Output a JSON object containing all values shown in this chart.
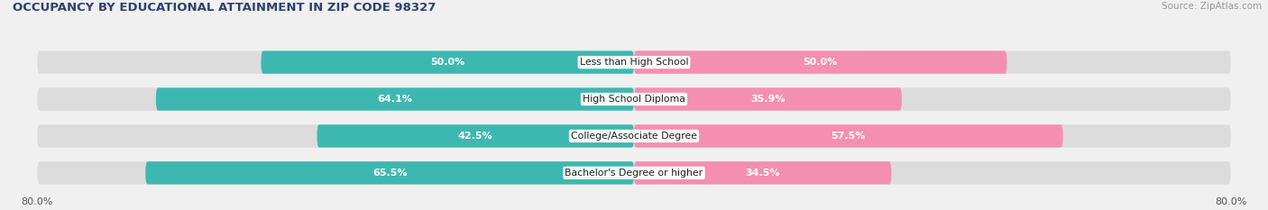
{
  "title": "OCCUPANCY BY EDUCATIONAL ATTAINMENT IN ZIP CODE 98327",
  "source": "Source: ZipAtlas.com",
  "categories": [
    "Less than High School",
    "High School Diploma",
    "College/Associate Degree",
    "Bachelor's Degree or higher"
  ],
  "owner_values": [
    50.0,
    64.1,
    42.5,
    65.5
  ],
  "renter_values": [
    50.0,
    35.9,
    57.5,
    34.5
  ],
  "owner_color": "#3db8b0",
  "renter_color": "#F48FB1",
  "background_color": "#f0f0f0",
  "bar_background": "#dcdcdc",
  "bar_height": 0.62,
  "title_color": "#2e4070",
  "source_color": "#999999",
  "label_fontsize": 7.8,
  "value_fontsize": 8.0,
  "xlim_left": -85,
  "xlim_right": 85,
  "xmax": 80
}
